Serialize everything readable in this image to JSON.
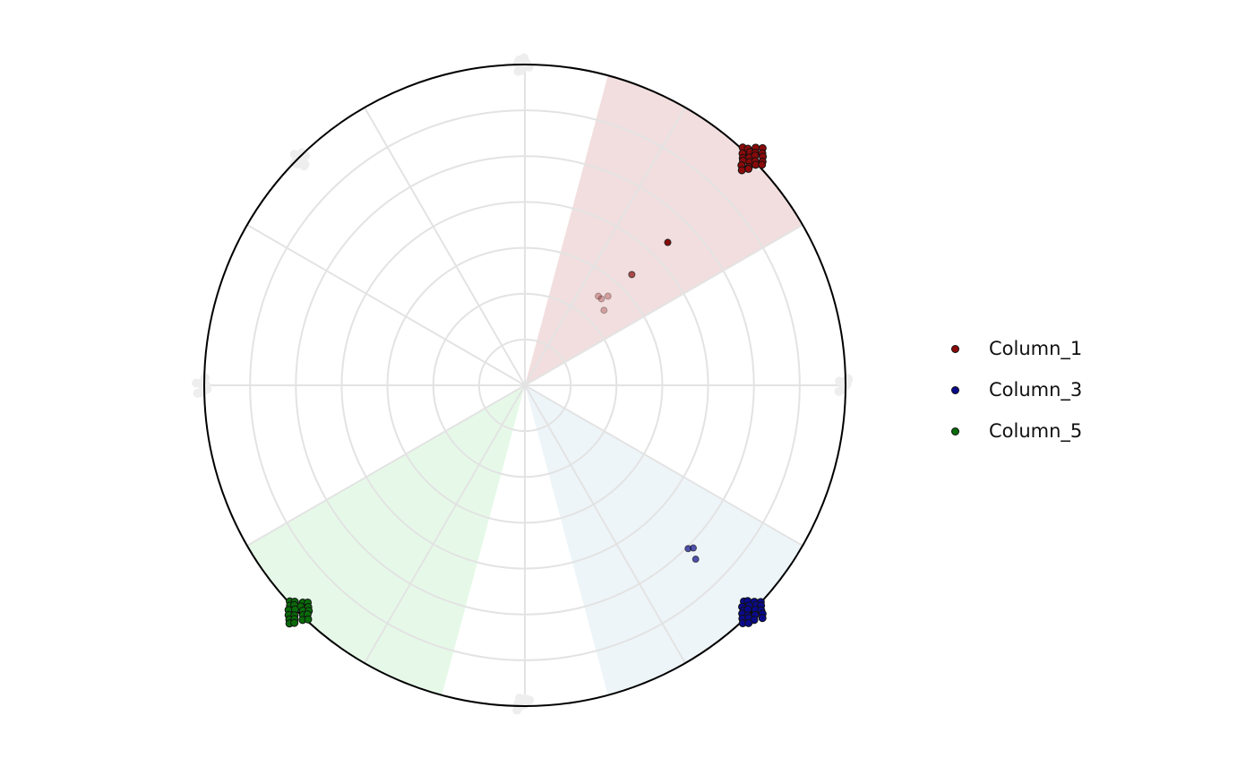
{
  "chart_data": {
    "type": "scatter",
    "subtype": "polar",
    "title": "",
    "grid": true,
    "rings": 7,
    "spokes": 12,
    "legend_position": "right",
    "ghost_color": "#eeeeee",
    "ghost_angles_deg": [
      0,
      45,
      90,
      135,
      180,
      225,
      270,
      315
    ],
    "series": [
      {
        "name": "Column_1",
        "color": "#8b0a0a",
        "sector_color": "#f2dede",
        "sector_deg": [
          30,
          75
        ],
        "cluster_angle_deg": 45,
        "points": [
          {
            "angle": 45.0,
            "r": 0.63,
            "opacity": 1.0
          },
          {
            "angle": 46.0,
            "r": 0.48,
            "opacity": 0.7
          },
          {
            "angle": 47.0,
            "r": 0.38,
            "opacity": 0.3
          },
          {
            "angle": 48.5,
            "r": 0.36,
            "opacity": 0.3
          },
          {
            "angle": 50.5,
            "r": 0.36,
            "opacity": 0.3
          },
          {
            "angle": 43.5,
            "r": 0.34,
            "opacity": 0.3
          }
        ]
      },
      {
        "name": "Column_3",
        "color": "#0a0a8b",
        "sector_color": "#eef5f9",
        "sector_deg": [
          -75,
          -30
        ],
        "cluster_angle_deg": -45,
        "points": [
          {
            "angle": -45.0,
            "r": 0.72,
            "opacity": 0.7
          },
          {
            "angle": -44.0,
            "r": 0.73,
            "opacity": 0.7
          },
          {
            "angle": -45.5,
            "r": 0.76,
            "opacity": 0.7
          }
        ]
      },
      {
        "name": "Column_5",
        "color": "#0a6b0a",
        "sector_color": "#e6f9e8",
        "sector_deg": [
          -150,
          -105
        ],
        "cluster_angle_deg": -135,
        "points": []
      }
    ]
  }
}
